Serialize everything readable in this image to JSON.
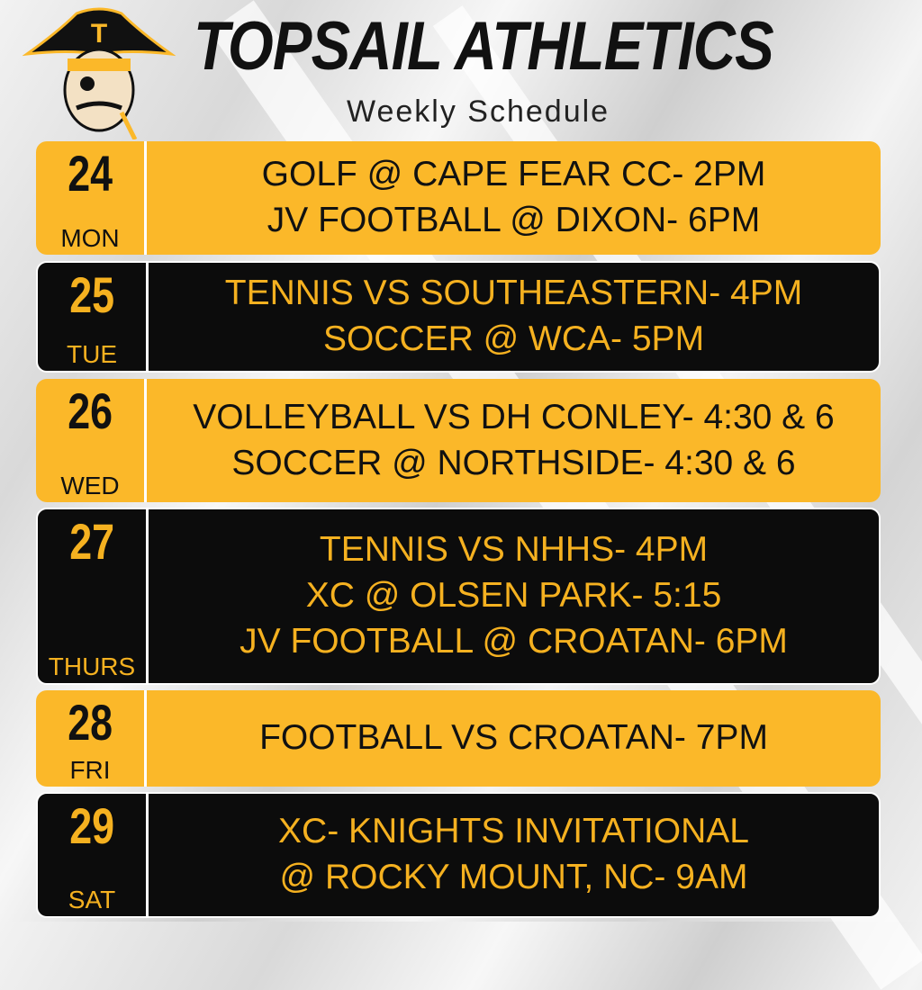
{
  "header": {
    "title": "TOPSAIL ATHLETICS",
    "subtitle": "Weekly Schedule"
  },
  "days": [
    {
      "date": "24",
      "day": "MON",
      "events": [
        "GOLF @ CAPE FEAR CC- 2PM",
        "JV FOOTBALL @ DIXON- 6PM"
      ]
    },
    {
      "date": "25",
      "day": "TUE",
      "events": [
        "TENNIS VS SOUTHEASTERN- 4PM",
        "SOCCER @ WCA- 5PM"
      ]
    },
    {
      "date": "26",
      "day": "WED",
      "events": [
        "VOLLEYBALL VS DH CONLEY- 4:30 & 6",
        "SOCCER @ NORTHSIDE- 4:30 & 6"
      ]
    },
    {
      "date": "27",
      "day": "THURS",
      "events": [
        "TENNIS VS NHHS- 4PM",
        "XC @ OLSEN PARK- 5:15",
        "JV FOOTBALL @ CROATAN- 6PM"
      ]
    },
    {
      "date": "28",
      "day": "FRI",
      "events": [
        "FOOTBALL VS CROATAN- 7PM"
      ]
    },
    {
      "date": "29",
      "day": "SAT",
      "events": [
        "XC- KNIGHTS INVITATIONAL",
        "@ ROCKY MOUNT, NC- 9AM"
      ]
    }
  ]
}
